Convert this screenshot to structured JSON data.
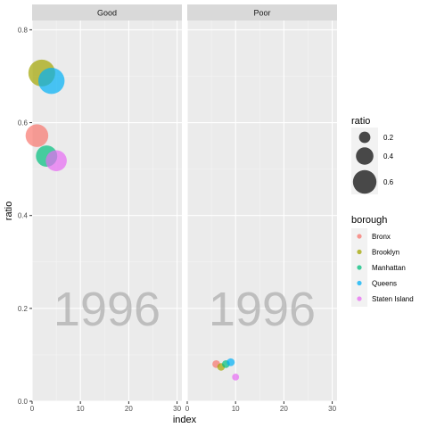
{
  "chart_data": {
    "type": "scatter",
    "facets": [
      "Good",
      "Poor"
    ],
    "frame_label": "1996",
    "xlabel": "index",
    "ylabel": "ratio",
    "xlim": [
      0,
      31
    ],
    "ylim": [
      0,
      0.82
    ],
    "x_ticks": [
      0,
      10,
      20,
      30
    ],
    "y_ticks": [
      0.0,
      0.2,
      0.4,
      0.6,
      0.8
    ],
    "y_tick_labels": [
      "0.0",
      "0.2",
      "0.4",
      "0.6",
      "0.8"
    ],
    "grid": true,
    "legend_placement": "right",
    "size_legend": {
      "title": "ratio",
      "entries": [
        {
          "value": 0.2,
          "label": "0.2"
        },
        {
          "value": 0.4,
          "label": "0.4"
        },
        {
          "value": 0.6,
          "label": "0.6"
        }
      ]
    },
    "color_legend": {
      "title": "borough",
      "entries": [
        {
          "name": "Bronx",
          "color": "#F8766D"
        },
        {
          "name": "Brooklyn",
          "color": "#A3A500"
        },
        {
          "name": "Manhattan",
          "color": "#00BF7D"
        },
        {
          "name": "Queens",
          "color": "#00B0F6"
        },
        {
          "name": "Staten Island",
          "color": "#E76BF3"
        }
      ]
    },
    "series": [
      {
        "facet": "Good",
        "borough": "Bronx",
        "x": 1,
        "y": 0.572
      },
      {
        "facet": "Good",
        "borough": "Brooklyn",
        "x": 2,
        "y": 0.707
      },
      {
        "facet": "Good",
        "borough": "Manhattan",
        "x": 3,
        "y": 0.528
      },
      {
        "facet": "Good",
        "borough": "Queens",
        "x": 4,
        "y": 0.69
      },
      {
        "facet": "Good",
        "borough": "Staten Island",
        "x": 5,
        "y": 0.518
      },
      {
        "facet": "Poor",
        "borough": "Bronx",
        "x": 6,
        "y": 0.08
      },
      {
        "facet": "Poor",
        "borough": "Brooklyn",
        "x": 7,
        "y": 0.074
      },
      {
        "facet": "Poor",
        "borough": "Manhattan",
        "x": 8,
        "y": 0.08
      },
      {
        "facet": "Poor",
        "borough": "Queens",
        "x": 9,
        "y": 0.084
      },
      {
        "facet": "Poor",
        "borough": "Staten Island",
        "x": 10,
        "y": 0.052
      }
    ]
  }
}
